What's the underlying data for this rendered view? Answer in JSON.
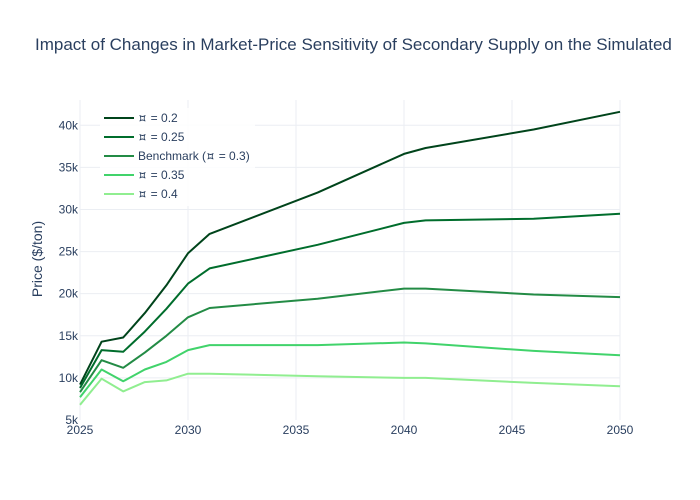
{
  "chart_data": {
    "type": "line",
    "title": "Impact of Changes in Market-Price Sensitivity of Secondary Supply on the Simulated",
    "xlabel": "",
    "ylabel": "Price ($/ton)",
    "xlim": [
      2025,
      2050
    ],
    "ylim": [
      5000,
      43000
    ],
    "x_ticks": [
      2025,
      2030,
      2035,
      2040,
      2045,
      2050
    ],
    "x_tick_labels": [
      "2025",
      "2030",
      "2035",
      "2040",
      "2045",
      "2050"
    ],
    "y_ticks": [
      5000,
      10000,
      15000,
      20000,
      25000,
      30000,
      35000,
      40000
    ],
    "y_tick_labels": [
      "5k",
      "10k",
      "15k",
      "20k",
      "25k",
      "30k",
      "35k",
      "40k"
    ],
    "grid": true,
    "legend_position": "top-left",
    "x": [
      2025,
      2026,
      2027,
      2028,
      2029,
      2030,
      2031,
      2036,
      2040,
      2041,
      2046,
      2050
    ],
    "series": [
      {
        "name": "⯏ = 0.2",
        "color": "#00441b",
        "values": [
          9200,
          14300,
          14800,
          17700,
          21000,
          24800,
          27100,
          32000,
          36600,
          37300,
          39500,
          41600
        ]
      },
      {
        "name": "⯏ = 0.25",
        "color": "#006d2c",
        "values": [
          8800,
          13300,
          13100,
          15500,
          18200,
          21200,
          23000,
          25800,
          28400,
          28700,
          28900,
          29500
        ]
      },
      {
        "name": "Benchmark (⯏ = 0.3)",
        "color": "#238b45",
        "values": [
          8300,
          12100,
          11200,
          13000,
          15000,
          17200,
          18300,
          19400,
          20600,
          20600,
          19900,
          19600
        ]
      },
      {
        "name": "⯏ = 0.35",
        "color": "#41d36b",
        "values": [
          7700,
          11000,
          9600,
          11000,
          11900,
          13300,
          13900,
          13900,
          14200,
          14100,
          13200,
          12700
        ]
      },
      {
        "name": "⯏ = 0.4",
        "color": "#90ee90",
        "values": [
          6800,
          9900,
          8400,
          9500,
          9700,
          10500,
          10500,
          10200,
          10000,
          10000,
          9400,
          9000
        ]
      }
    ]
  }
}
